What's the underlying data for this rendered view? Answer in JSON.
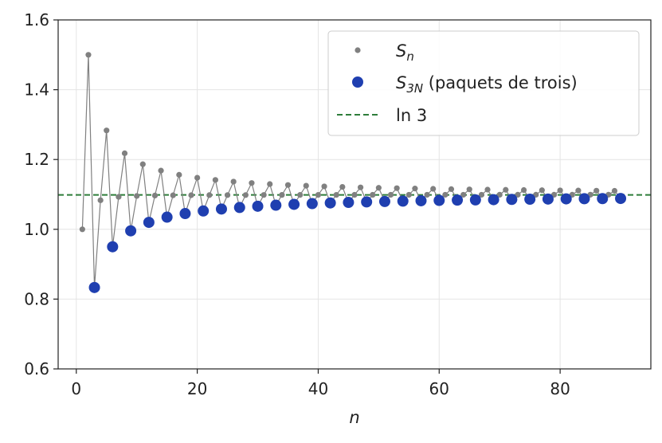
{
  "chart_data": {
    "type": "line",
    "xlabel": "n",
    "ylabel": "",
    "xlim": [
      -3,
      95
    ],
    "ylim": [
      0.6,
      1.6
    ],
    "xticks": [
      "0",
      "20",
      "40",
      "60",
      "80"
    ],
    "yticks": [
      "0.6",
      "0.8",
      "1.0",
      "1.2",
      "1.4",
      "1.6"
    ],
    "grid": true,
    "legend_position": "top-right",
    "colors": {
      "sn": "#808080",
      "s3n": "#1f3fb0",
      "ln3": "#2e7d3a"
    },
    "series": [
      {
        "name": "S_n",
        "legend_main": "S",
        "legend_sub": "n",
        "legend_suffix": "",
        "style": "line-markers-small",
        "x": [
          1,
          2,
          3,
          4,
          5,
          6,
          7,
          8,
          9,
          10,
          11,
          12,
          13,
          14,
          15,
          16,
          17,
          18,
          19,
          20,
          21,
          22,
          23,
          24,
          25,
          26,
          27,
          28,
          29,
          30,
          31,
          32,
          33,
          34,
          35,
          36,
          37,
          38,
          39,
          40,
          41,
          42,
          43,
          44,
          45,
          46,
          47,
          48,
          49,
          50,
          51,
          52,
          53,
          54,
          55,
          56,
          57,
          58,
          59,
          60,
          61,
          62,
          63,
          64,
          65,
          66,
          67,
          68,
          69,
          70,
          71,
          72,
          73,
          74,
          75,
          76,
          77,
          78,
          79,
          80,
          81,
          82,
          83,
          84,
          85,
          86,
          87,
          88,
          89,
          90
        ],
        "y": [
          1.0,
          1.5,
          0.8333,
          1.0833,
          1.2833,
          0.95,
          1.0929,
          1.2179,
          0.9956,
          1.0956,
          1.1865,
          1.0199,
          1.0968,
          1.1682,
          1.0349,
          1.0974,
          1.1562,
          1.0451,
          1.0977,
          1.1477,
          1.0525,
          1.098,
          1.1415,
          1.0581,
          1.0981,
          1.1366,
          1.0625,
          1.0982,
          1.1327,
          1.0661,
          1.0984,
          1.1296,
          1.0691,
          1.0985,
          1.127,
          1.0716,
          1.0986,
          1.1249,
          1.0737,
          1.0987,
          1.123,
          1.0755,
          1.0987,
          1.1215,
          1.0771,
          1.0988,
          1.1201,
          1.0785,
          1.0988,
          1.1188,
          1.0797,
          1.0989,
          1.1178,
          1.0808,
          1.0989,
          1.1168,
          1.0818,
          1.0989,
          1.116,
          1.0828,
          1.099,
          1.1151,
          1.0836,
          1.099,
          1.1144,
          1.0843,
          1.099,
          1.1137,
          1.085,
          1.0991,
          1.1131,
          1.0856,
          1.0991,
          1.1125,
          1.0862,
          1.0991,
          1.112,
          1.0867,
          1.0991,
          1.1115,
          1.0872,
          1.0991,
          1.1111,
          1.0876,
          1.0992,
          1.1107,
          1.088,
          1.0992,
          1.1103,
          1.0884
        ]
      },
      {
        "name": "S_3N (paquets de trois)",
        "legend_main": "S",
        "legend_sub": "3N",
        "legend_suffix": " (paquets de trois)",
        "style": "markers-large",
        "x": [
          3,
          6,
          9,
          12,
          15,
          18,
          21,
          24,
          27,
          30,
          33,
          36,
          39,
          42,
          45,
          48,
          51,
          54,
          57,
          60,
          63,
          66,
          69,
          72,
          75,
          78,
          81,
          84,
          87,
          90
        ],
        "y": [
          0.8333,
          0.95,
          0.9956,
          1.0199,
          1.0349,
          1.0451,
          1.0525,
          1.0581,
          1.0625,
          1.0661,
          1.0691,
          1.0716,
          1.0737,
          1.0755,
          1.0771,
          1.0785,
          1.0797,
          1.0808,
          1.0818,
          1.0828,
          1.0836,
          1.0843,
          1.085,
          1.0856,
          1.0862,
          1.0867,
          1.0872,
          1.0876,
          1.088,
          1.0884
        ]
      },
      {
        "name": "ln 3",
        "legend_main": "ln 3",
        "legend_sub": "",
        "legend_suffix": "",
        "style": "dashed-hline",
        "y_constant": 1.0986
      }
    ]
  }
}
